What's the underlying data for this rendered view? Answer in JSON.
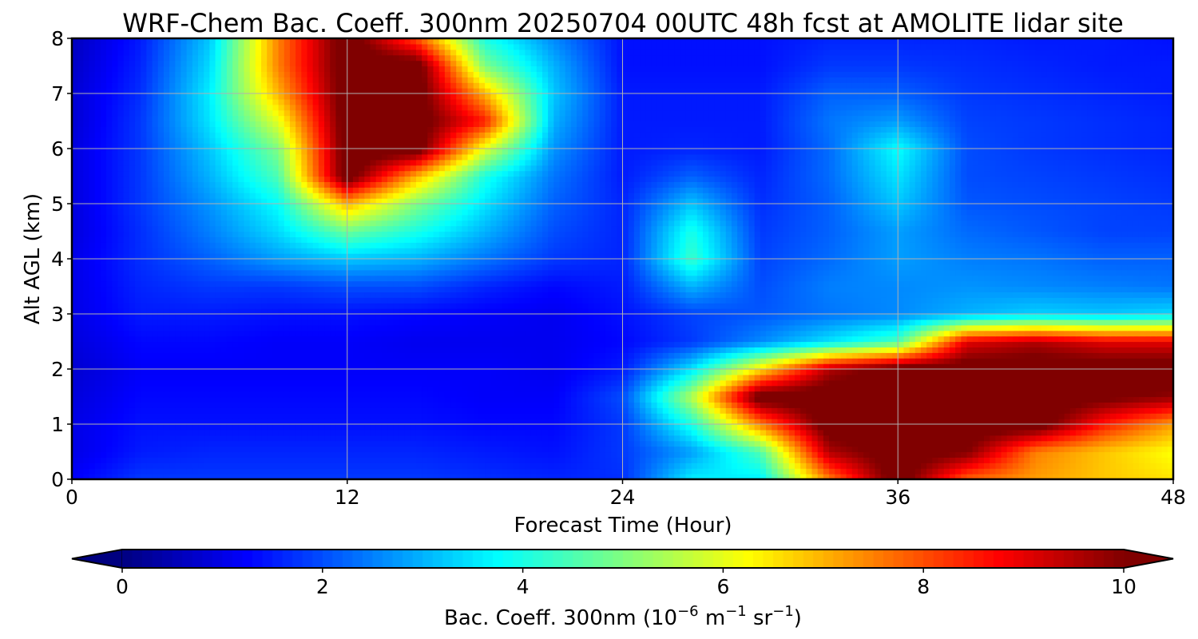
{
  "chart_data": {
    "type": "heatmap",
    "title": "WRF-Chem Bac. Coeff. 300nm  20250704 00UTC 48h fcst at AMOLITE lidar site",
    "xlabel": "Forecast Time (Hour)",
    "ylabel": "Alt AGL (km)",
    "xlim": [
      0,
      48
    ],
    "ylim": [
      0,
      8
    ],
    "xticks": [
      0,
      12,
      24,
      36,
      48
    ],
    "yticks": [
      0,
      1,
      2,
      3,
      4,
      5,
      6,
      7,
      8
    ],
    "grid": true,
    "colormap": "jet",
    "colorbar": {
      "orientation": "horizontal",
      "placement": "bottom",
      "label_main": "Bac. Coeff. 300nm  (10",
      "label_exp1": "−6",
      "label_mid": " m",
      "label_exp2": "−1",
      "label_mid2": " sr",
      "label_exp3": "−1",
      "label_end": ")",
      "range": [
        0,
        10
      ],
      "ticks": [
        0,
        2,
        4,
        6,
        8,
        10
      ],
      "extend": "both"
    },
    "x": [
      0,
      3,
      6,
      9,
      12,
      15,
      18,
      21,
      24,
      27,
      30,
      33,
      36,
      39,
      42,
      45,
      48
    ],
    "y": [
      0,
      0.5,
      1,
      1.5,
      2,
      2.5,
      3,
      3.5,
      4,
      4.5,
      5,
      5.5,
      6,
      6.5,
      7,
      7.5,
      8
    ],
    "z": [
      [
        1.2,
        1.8,
        1.8,
        1.8,
        1.8,
        1.8,
        1.7,
        1.6,
        1.7,
        3.6,
        3.6,
        7.5,
        10.5,
        7.8,
        7.2,
        6.8,
        6.5
      ],
      [
        1.0,
        1.5,
        1.6,
        1.6,
        1.6,
        1.6,
        1.5,
        1.4,
        1.8,
        2.8,
        4.5,
        9.5,
        10.5,
        10.0,
        7.5,
        6.8,
        6.2
      ],
      [
        1.0,
        1.4,
        1.4,
        1.4,
        1.4,
        1.4,
        1.3,
        1.3,
        1.8,
        4.0,
        7.5,
        10.5,
        10.5,
        10.5,
        10.5,
        8.5,
        7.2
      ],
      [
        0.9,
        1.3,
        1.3,
        1.3,
        1.3,
        1.3,
        1.2,
        1.2,
        2.0,
        5.5,
        10.5,
        10.5,
        10.5,
        10.5,
        10.5,
        10.2,
        9.8
      ],
      [
        0.8,
        1.2,
        1.2,
        1.2,
        1.2,
        1.2,
        1.2,
        1.1,
        1.5,
        3.5,
        6.5,
        9.5,
        10.5,
        10.5,
        10.5,
        10.5,
        10.5
      ],
      [
        0.9,
        1.3,
        1.3,
        1.2,
        1.2,
        1.1,
        1.1,
        1.1,
        1.3,
        1.8,
        2.6,
        3.5,
        4.5,
        9.0,
        9.5,
        9.0,
        9.0
      ],
      [
        1.0,
        1.5,
        1.5,
        1.4,
        1.4,
        1.3,
        1.2,
        1.1,
        1.4,
        1.9,
        2.1,
        2.4,
        2.6,
        3.0,
        3.3,
        3.2,
        3.4
      ],
      [
        1.0,
        1.6,
        1.8,
        1.8,
        2.0,
        2.0,
        1.6,
        1.3,
        1.5,
        3.0,
        2.0,
        2.5,
        2.6,
        2.7,
        2.6,
        2.5,
        2.4
      ],
      [
        1.0,
        1.7,
        2.2,
        2.8,
        3.2,
        3.0,
        2.4,
        1.8,
        1.6,
        4.3,
        1.9,
        2.3,
        2.8,
        2.5,
        2.4,
        2.2,
        2.2
      ],
      [
        0.9,
        1.7,
        2.5,
        3.4,
        4.8,
        4.0,
        3.0,
        2.0,
        1.6,
        4.0,
        1.8,
        2.2,
        2.8,
        2.3,
        2.1,
        1.9,
        1.9
      ],
      [
        0.9,
        1.8,
        2.7,
        3.8,
        7.0,
        5.0,
        3.5,
        2.2,
        1.6,
        3.2,
        1.7,
        2.2,
        3.2,
        2.1,
        2.0,
        1.9,
        1.8
      ],
      [
        0.9,
        1.8,
        3.0,
        4.5,
        10.5,
        7.0,
        4.0,
        2.4,
        1.5,
        2.2,
        1.6,
        2.3,
        3.5,
        2.0,
        1.9,
        1.8,
        1.7
      ],
      [
        0.9,
        1.8,
        3.2,
        5.0,
        10.5,
        10.5,
        6.0,
        2.7,
        1.5,
        1.6,
        1.5,
        2.3,
        3.8,
        2.0,
        1.8,
        1.7,
        1.6
      ],
      [
        0.8,
        1.8,
        3.5,
        6.0,
        10.5,
        10.5,
        8.5,
        3.0,
        1.5,
        1.5,
        1.5,
        2.4,
        2.8,
        1.9,
        1.8,
        1.7,
        1.6
      ],
      [
        0.8,
        1.7,
        3.6,
        7.0,
        10.5,
        10.5,
        7.0,
        3.2,
        1.5,
        1.5,
        1.5,
        2.2,
        2.2,
        1.8,
        1.7,
        1.6,
        1.5
      ],
      [
        0.7,
        1.6,
        3.4,
        7.5,
        10.5,
        10.5,
        5.0,
        3.0,
        1.4,
        1.4,
        1.4,
        1.8,
        1.8,
        1.7,
        1.6,
        1.5,
        1.5
      ],
      [
        0.6,
        1.5,
        3.2,
        7.5,
        10.5,
        8.0,
        4.0,
        2.6,
        1.4,
        1.4,
        1.4,
        1.6,
        1.6,
        1.6,
        1.5,
        1.5,
        1.4
      ]
    ]
  }
}
